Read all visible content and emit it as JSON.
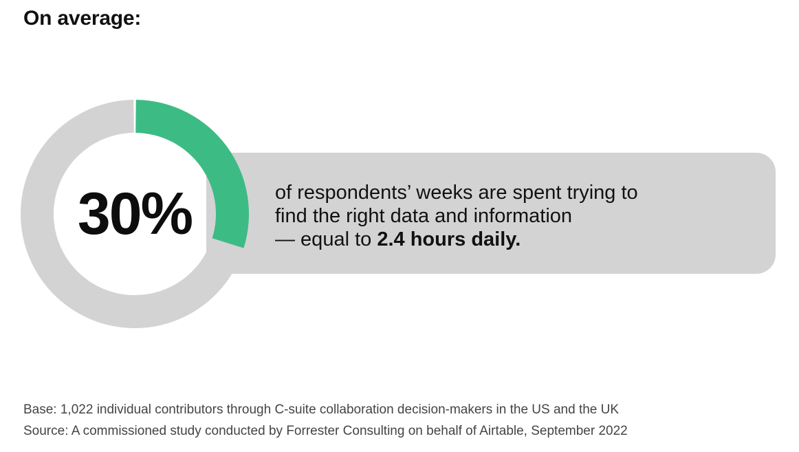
{
  "heading": "On average:",
  "chart_data": {
    "type": "pie",
    "style": "donut",
    "value_label": "30%",
    "slices": [
      {
        "label": "30%",
        "value": 30,
        "color": "#3dbb84"
      },
      {
        "label": "",
        "value": 70,
        "color": "#d3d3d3"
      }
    ]
  },
  "statement": {
    "line1": "of respondents’ weeks are spent trying to",
    "line2": "find the right data and information",
    "line3_prefix": "— equal to ",
    "line3_bold": "2.4 hours daily."
  },
  "footnotes": {
    "base": "Base: 1,022 individual contributors through C-suite collaboration decision-makers in the US and the UK",
    "source": "Source: A commissioned study conducted by Forrester Consulting on behalf of Airtable, September 2022"
  }
}
